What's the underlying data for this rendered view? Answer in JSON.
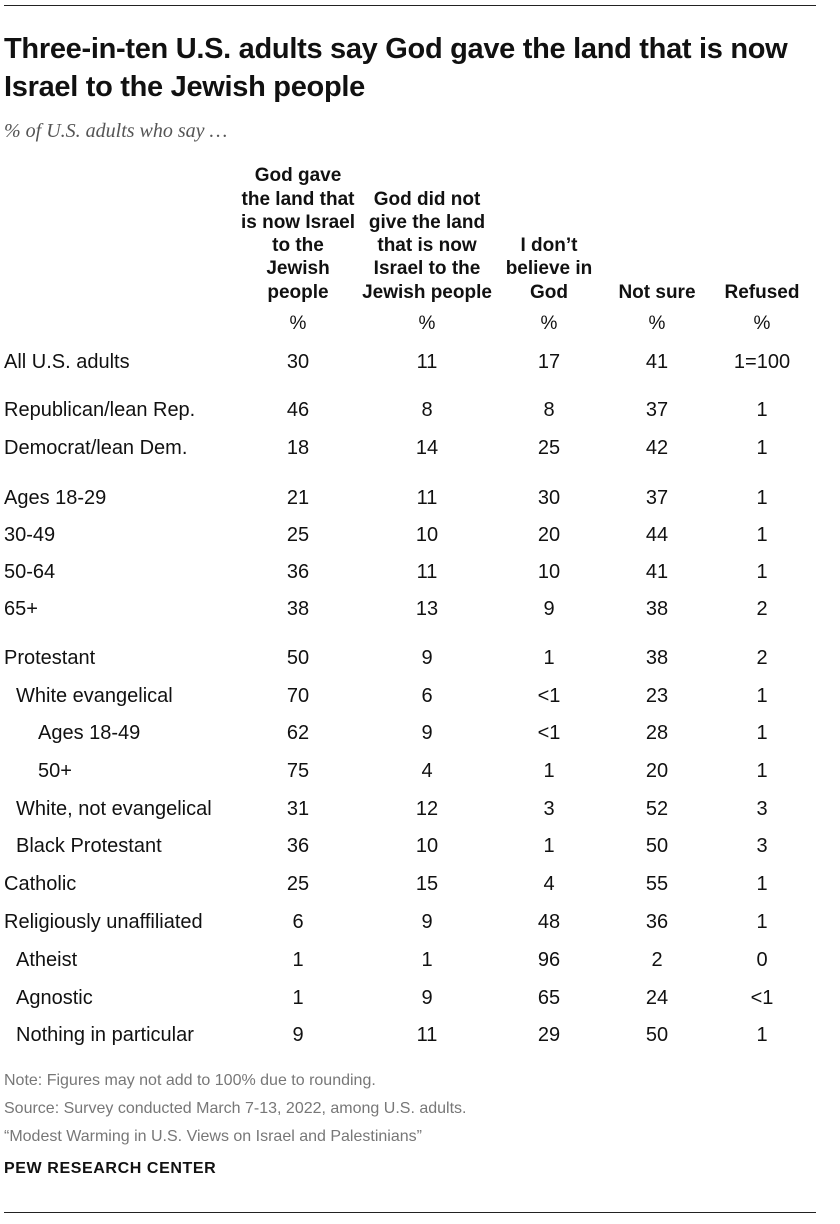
{
  "title": "Three-in-ten U.S. adults say God gave the land that is now Israel to the Jewish people",
  "subtitle": "% of U.S. adults who say …",
  "chart_data": {
    "type": "table",
    "columns": [
      {
        "header": "God gave the land that is now Israel to the Jewish people",
        "unit": "%"
      },
      {
        "header": "God did not give the land that is now Israel to the Jewish people",
        "unit": "%"
      },
      {
        "header": "I don’t believe in God",
        "unit": "%"
      },
      {
        "header": "Not sure",
        "unit": "%"
      },
      {
        "header": "Refused",
        "unit": "%"
      }
    ],
    "rows": [
      {
        "label": "All U.S. adults",
        "indent": 0,
        "values": [
          "30",
          "11",
          "17",
          "41",
          "1=100"
        ]
      },
      {
        "label": "Republican/lean Rep.",
        "indent": 0,
        "values": [
          "46",
          "8",
          "8",
          "37",
          "1"
        ]
      },
      {
        "label": "Democrat/lean Dem.",
        "indent": 0,
        "values": [
          "18",
          "14",
          "25",
          "42",
          "1"
        ]
      },
      {
        "label": "Ages 18-29",
        "indent": 0,
        "values": [
          "21",
          "11",
          "30",
          "37",
          "1"
        ]
      },
      {
        "label": "30-49",
        "indent": 0,
        "values": [
          "25",
          "10",
          "20",
          "44",
          "1"
        ]
      },
      {
        "label": "50-64",
        "indent": 0,
        "values": [
          "36",
          "11",
          "10",
          "41",
          "1"
        ]
      },
      {
        "label": "65+",
        "indent": 0,
        "values": [
          "38",
          "13",
          "9",
          "38",
          "2"
        ]
      },
      {
        "label": "Protestant",
        "indent": 0,
        "values": [
          "50",
          "9",
          "1",
          "38",
          "2"
        ]
      },
      {
        "label": "White evangelical",
        "indent": 1,
        "values": [
          "70",
          "6",
          "<1",
          "23",
          "1"
        ]
      },
      {
        "label": "Ages 18-49",
        "indent": 2,
        "values": [
          "62",
          "9",
          "<1",
          "28",
          "1"
        ]
      },
      {
        "label": "50+",
        "indent": 2,
        "values": [
          "75",
          "4",
          "1",
          "20",
          "1"
        ]
      },
      {
        "label": "White, not evangelical",
        "indent": 1,
        "values": [
          "31",
          "12",
          "3",
          "52",
          "3"
        ]
      },
      {
        "label": "Black Protestant",
        "indent": 1,
        "values": [
          "36",
          "10",
          "1",
          "50",
          "3"
        ]
      },
      {
        "label": "Catholic",
        "indent": 0,
        "values": [
          "25",
          "15",
          "4",
          "55",
          "1"
        ]
      },
      {
        "label": "Religiously unaffiliated",
        "indent": 0,
        "values": [
          "6",
          "9",
          "48",
          "36",
          "1"
        ]
      },
      {
        "label": "Atheist",
        "indent": 1,
        "values": [
          "1",
          "1",
          "96",
          "2",
          "0"
        ]
      },
      {
        "label": "Agnostic",
        "indent": 1,
        "values": [
          "1",
          "9",
          "65",
          "24",
          "<1"
        ]
      },
      {
        "label": "Nothing in particular",
        "indent": 1,
        "values": [
          "9",
          "11",
          "29",
          "50",
          "1"
        ]
      }
    ]
  },
  "notes": {
    "note": "Note: Figures may not add to 100% due to rounding.",
    "source": "Source: Survey conducted March 7-13, 2022, among U.S. adults.",
    "report": "“Modest Warming in U.S. Views on Israel and Palestinians”"
  },
  "brand": "PEW RESEARCH CENTER"
}
